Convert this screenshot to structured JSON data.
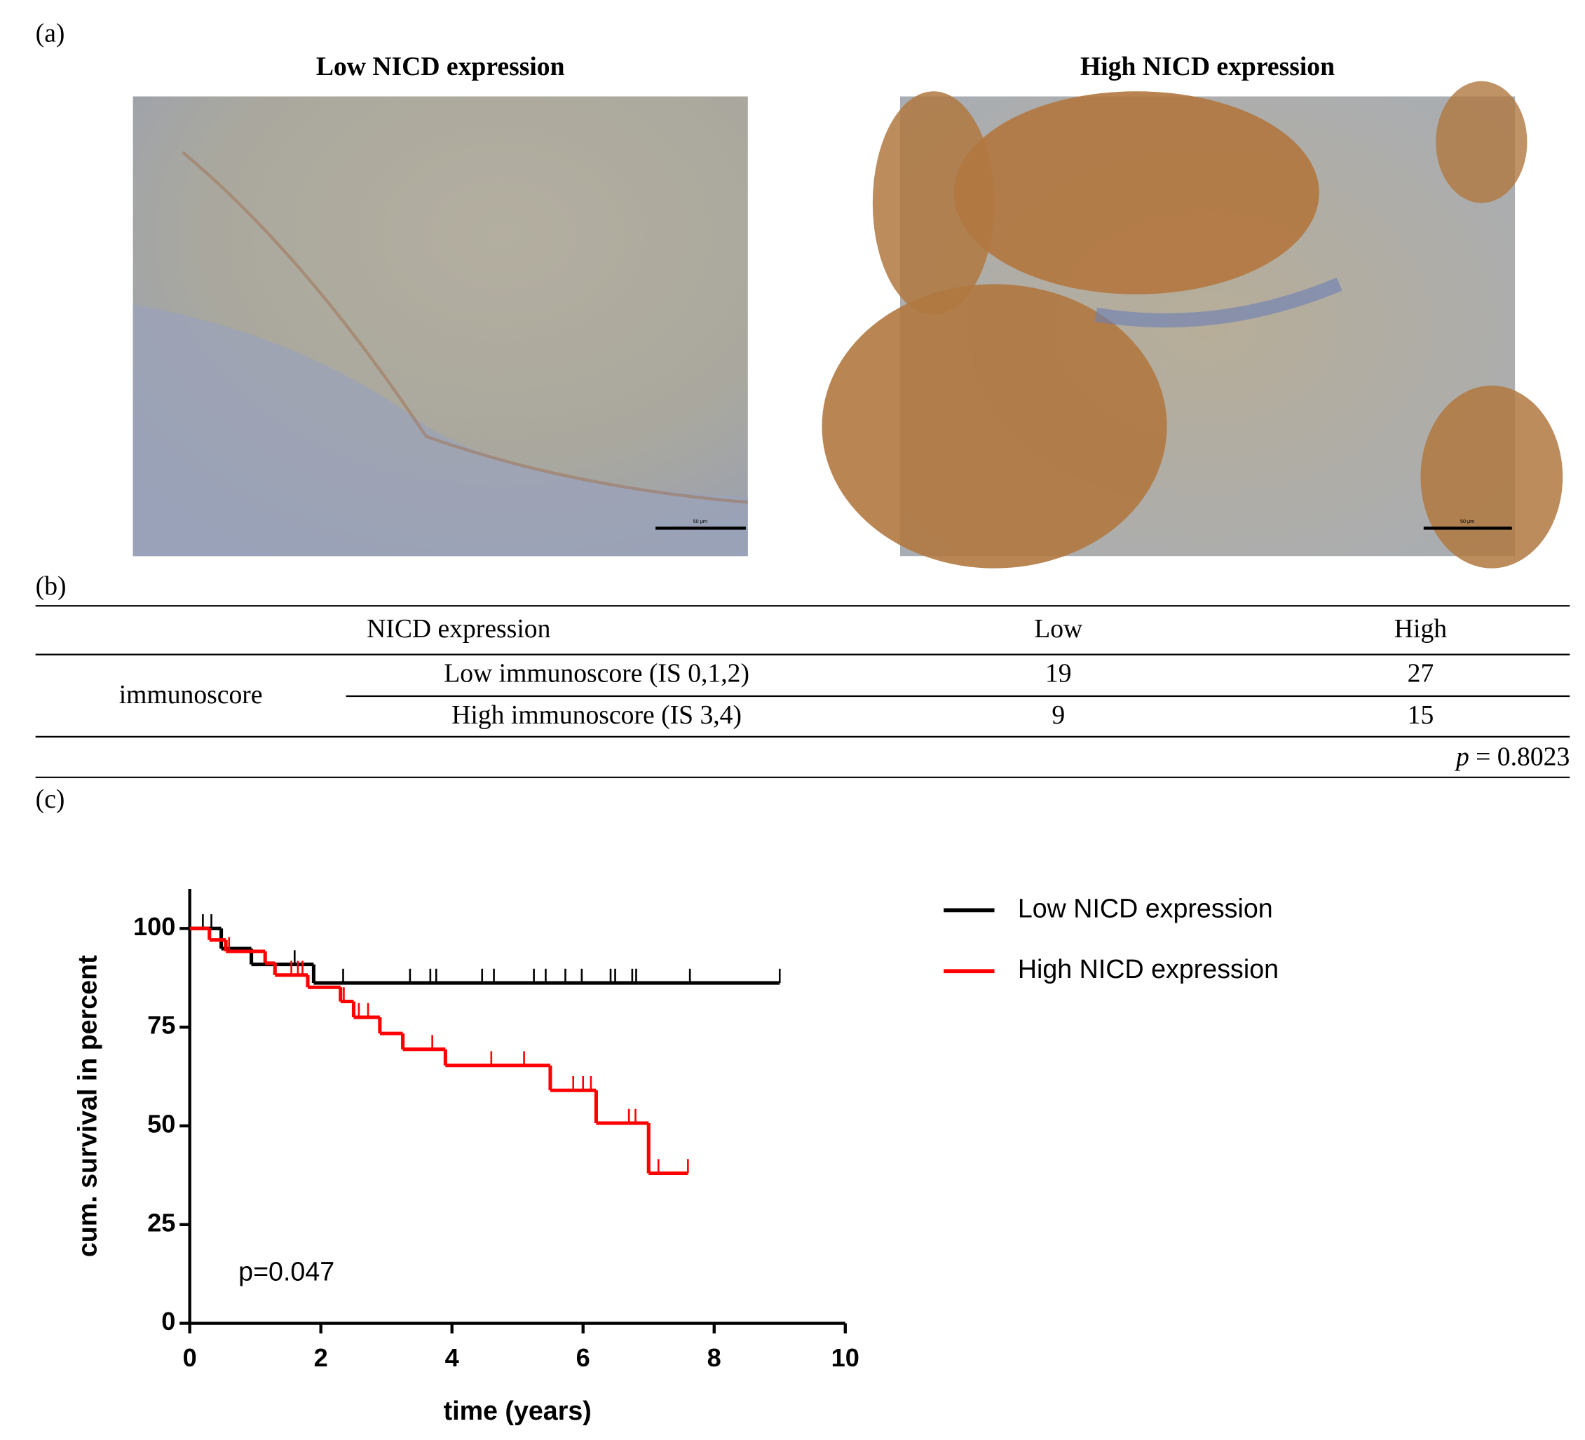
{
  "panels": {
    "a": {
      "label": "(a)",
      "images": [
        {
          "title": "Low NICD expression",
          "scale_bar": "50 μm"
        },
        {
          "title": "High NICD expression",
          "scale_bar": "50 μm"
        }
      ]
    },
    "b": {
      "label": "(b)"
    },
    "c": {
      "label": "(c)"
    }
  },
  "table": {
    "header": [
      "NICD expression",
      "Low",
      "High"
    ],
    "group": "immunoscore",
    "rows": [
      [
        "Low immunoscore (IS 0,1,2)",
        "19",
        "27"
      ],
      [
        "High immunoscore (IS 3,4)",
        "9",
        "15"
      ]
    ],
    "p_symbol": "p",
    "p_text": "= 0.8023"
  },
  "chart_data": {
    "type": "step",
    "xlabel": "time (years)",
    "ylabel": "cum. survival in percent",
    "annotation": "p=0.047",
    "xlim": [
      0,
      10
    ],
    "xticks": [
      0,
      2,
      4,
      6,
      8,
      10
    ],
    "ylim": [
      0,
      110
    ],
    "yticks": [
      0,
      25,
      50,
      75,
      100
    ],
    "series": [
      {
        "name": "Low NICD expression",
        "color": "#000000",
        "x": [
          0,
          0.48,
          0.94,
          1.89,
          9.0
        ],
        "values": [
          100,
          94.9,
          90.9,
          86.2,
          86.2
        ],
        "censored": [
          0.2,
          0.33,
          1.6,
          2.34,
          3.36,
          3.67,
          3.76,
          4.46,
          4.64,
          5.25,
          5.43,
          5.73,
          5.98,
          6.42,
          6.49,
          6.75,
          6.81,
          7.63,
          9.0
        ]
      },
      {
        "name": "High NICD expression",
        "color": "#ff0000",
        "x": [
          0,
          0.3,
          0.55,
          1.15,
          1.3,
          1.8,
          2.3,
          2.5,
          2.9,
          3.25,
          3.9,
          5.5,
          6.2,
          7.0,
          7.6
        ],
        "values": [
          100,
          97.1,
          94.2,
          91.2,
          88.2,
          85.1,
          81.5,
          77.5,
          73.4,
          69.4,
          65.3,
          59.0,
          50.7,
          38.0,
          38.0
        ],
        "censored": [
          0.6,
          1.55,
          1.65,
          1.72,
          2.35,
          2.58,
          2.72,
          3.7,
          4.6,
          5.1,
          5.85,
          6.0,
          6.12,
          6.7,
          6.8,
          7.15,
          7.6
        ]
      }
    ]
  }
}
